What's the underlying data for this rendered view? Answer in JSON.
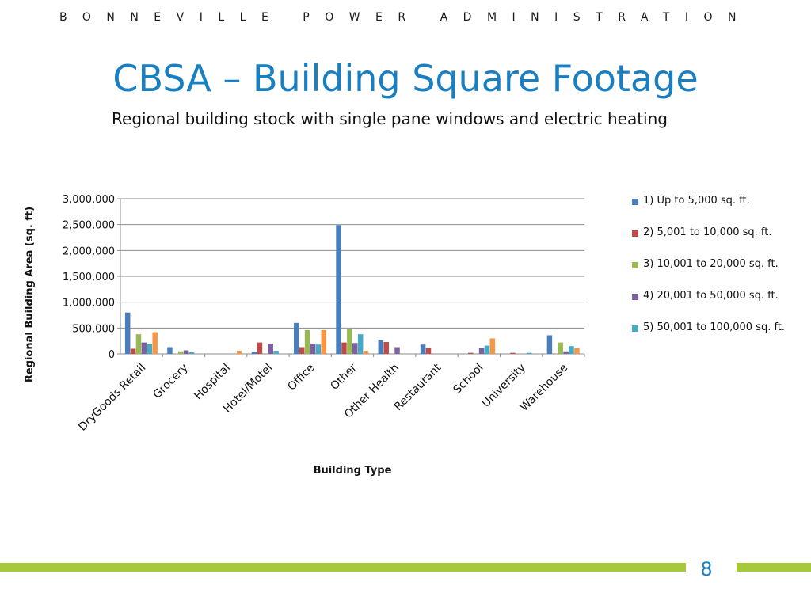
{
  "header": {
    "organization": "BONNEVILLE POWER ADMINISTRATION",
    "title": "CBSA – Building Square Footage",
    "subtitle": "Regional building stock with single pane windows and electric heating"
  },
  "footer": {
    "page_number": "8",
    "accent_color": "#a6c93a"
  },
  "colors": {
    "title": "#1a7fc1"
  },
  "chart_data": {
    "type": "bar",
    "xlabel": "Building Type",
    "ylabel": "Regional Building  Area (sq. ft)",
    "ylim": [
      0,
      3000000
    ],
    "yticks": [
      0,
      500000,
      1000000,
      1500000,
      2000000,
      2500000,
      3000000
    ],
    "ytick_labels": [
      "0",
      "500,000",
      "1,000,000",
      "1,500,000",
      "2,000,000",
      "2,500,000",
      "3,000,000"
    ],
    "grid": true,
    "legend_position": "right",
    "categories": [
      "DryGoods Retail",
      "Grocery",
      "Hospital",
      "Hotel/Motel",
      "Office",
      "Other",
      "Other Health",
      "Restaurant",
      "School",
      "University",
      "Warehouse"
    ],
    "series": [
      {
        "name": "1) Up to  5,000 sq.  ft.",
        "color": "#4a7ebb",
        "values": [
          800000,
          130000,
          0,
          40000,
          600000,
          2490000,
          260000,
          180000,
          0,
          0,
          360000
        ]
      },
      {
        "name": "2) 5,001 to  10,000 sq. ft.",
        "color": "#be4b48",
        "values": [
          100000,
          0,
          0,
          220000,
          130000,
          220000,
          230000,
          110000,
          20000,
          20000,
          0
        ]
      },
      {
        "name": "3) 10,001 to 20,000 sq. ft.",
        "color": "#98b954",
        "values": [
          380000,
          50000,
          0,
          0,
          460000,
          480000,
          0,
          0,
          0,
          0,
          220000
        ]
      },
      {
        "name": "4) 20,001 to 50,000 sq. ft.",
        "color": "#7d60a0",
        "values": [
          220000,
          70000,
          0,
          200000,
          200000,
          210000,
          130000,
          0,
          110000,
          0,
          50000
        ]
      },
      {
        "name": "5) 50,001 to 100,000 sq.  ft.",
        "color": "#46aac5",
        "values": [
          190000,
          30000,
          0,
          60000,
          180000,
          380000,
          0,
          0,
          160000,
          20000,
          150000
        ]
      },
      {
        "name": "",
        "color": "#f79646",
        "values": [
          420000,
          0,
          60000,
          0,
          460000,
          60000,
          0,
          0,
          300000,
          0,
          110000
        ]
      }
    ]
  }
}
